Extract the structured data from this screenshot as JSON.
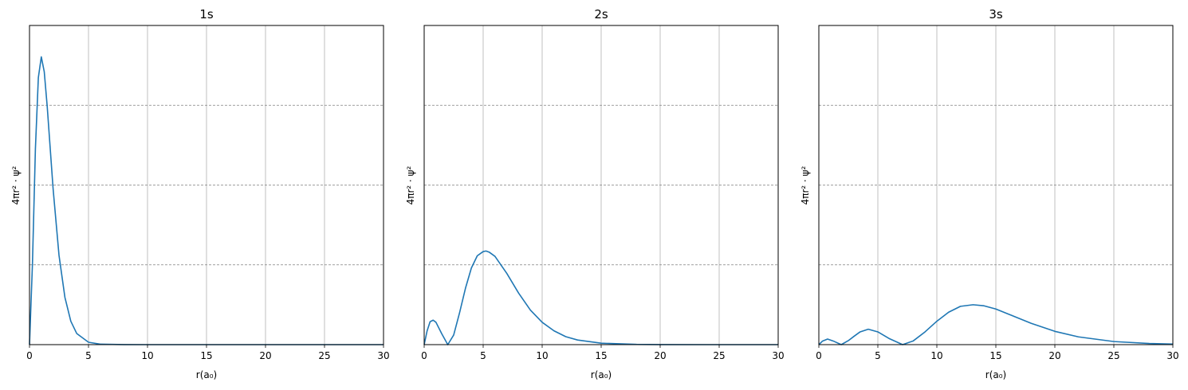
{
  "chart_data": [
    {
      "type": "line",
      "title": "1s",
      "xlabel": "r(a₀)",
      "ylabel": "4πr² · ψ²",
      "xlim": [
        0,
        30
      ],
      "ylim": [
        0,
        0.6
      ],
      "xticks": [
        "0",
        "5",
        "10",
        "15",
        "20",
        "25",
        "30"
      ],
      "grid": "on",
      "color": "#1f77b4",
      "x": [
        0,
        0.25,
        0.5,
        0.75,
        1.0,
        1.25,
        1.5,
        2.0,
        2.5,
        3.0,
        3.5,
        4.0,
        5.0,
        6.0,
        8.0,
        10.0,
        15.0,
        20.0,
        30.0
      ],
      "y": [
        0,
        0.152,
        0.368,
        0.502,
        0.541,
        0.513,
        0.448,
        0.293,
        0.168,
        0.089,
        0.044,
        0.021,
        0.0045,
        0.0009,
        3e-05,
        0,
        0,
        0,
        0
      ]
    },
    {
      "type": "line",
      "title": "2s",
      "xlabel": "r(a₀)",
      "ylabel": "4πr² · ψ²",
      "xlim": [
        0,
        30
      ],
      "ylim": [
        0,
        0.6
      ],
      "xticks": [
        "0",
        "5",
        "10",
        "15",
        "20",
        "25",
        "30"
      ],
      "grid": "on",
      "color": "#1f77b4",
      "x": [
        0,
        0.25,
        0.5,
        0.76,
        1.0,
        1.5,
        2.0,
        2.5,
        3.0,
        3.5,
        4.0,
        4.5,
        5.0,
        5.24,
        5.5,
        6.0,
        7.0,
        8.0,
        9.0,
        10.0,
        11.0,
        12.0,
        13.0,
        15.0,
        18.0,
        20.0,
        25.0,
        30.0
      ],
      "y": [
        0,
        0.026,
        0.043,
        0.046,
        0.042,
        0.02,
        0,
        0.018,
        0.06,
        0.106,
        0.144,
        0.167,
        0.175,
        0.176,
        0.174,
        0.166,
        0.134,
        0.097,
        0.065,
        0.042,
        0.026,
        0.015,
        0.0087,
        0.0027,
        0.0004,
        0.0001,
        0,
        0
      ]
    },
    {
      "type": "line",
      "title": "3s",
      "xlabel": "r(a₀)",
      "ylabel": "4πr² · ψ²",
      "xlim": [
        0,
        30
      ],
      "ylim": [
        0,
        0.6
      ],
      "xticks": [
        "0",
        "5",
        "10",
        "15",
        "20",
        "25",
        "30"
      ],
      "grid": "on",
      "color": "#1f77b4",
      "x": [
        0,
        0.3,
        0.74,
        1.2,
        1.9,
        2.5,
        3.0,
        3.5,
        4.19,
        5.0,
        6.0,
        7.1,
        8.0,
        9.0,
        10.0,
        11.0,
        12.0,
        13.07,
        14.0,
        15.0,
        16.0,
        18.0,
        20.0,
        22.0,
        25.0,
        28.0,
        30.0
      ],
      "y": [
        0,
        0.0065,
        0.0105,
        0.007,
        0,
        0.0075,
        0.016,
        0.024,
        0.029,
        0.024,
        0.011,
        0,
        0.007,
        0.024,
        0.044,
        0.061,
        0.072,
        0.075,
        0.073,
        0.067,
        0.058,
        0.04,
        0.025,
        0.0146,
        0.0058,
        0.0021,
        0.0011
      ]
    }
  ]
}
